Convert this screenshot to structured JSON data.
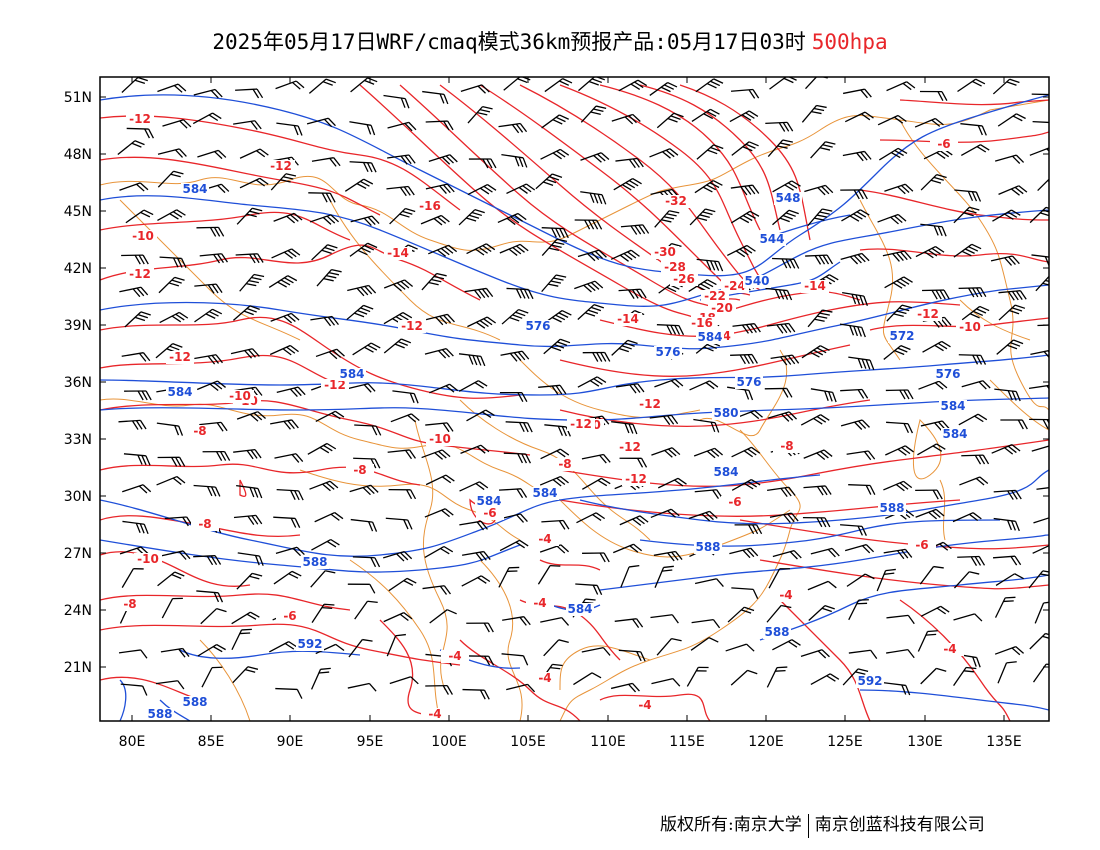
{
  "title": {
    "main": "2025年05月17日WRF/cmaq模式36km预报产品:05月17日03时",
    "level": "500hpa"
  },
  "colors": {
    "temperature": "#e8262a",
    "geopotential": "#1f4fd8",
    "coastline": "#e8943a",
    "wind_barb": "#000000"
  },
  "axes": {
    "lat_labels": [
      "51N",
      "48N",
      "45N",
      "42N",
      "39N",
      "36N",
      "33N",
      "30N",
      "27N",
      "24N",
      "21N"
    ],
    "lon_labels": [
      "80E",
      "85E",
      "90E",
      "95E",
      "100E",
      "105E",
      "110E",
      "115E",
      "120E",
      "125E",
      "130E",
      "135E"
    ]
  },
  "temperature_labels": [
    "-12",
    "-12",
    "-10",
    "-12",
    "-16",
    "-14",
    "-32",
    "-30",
    "-28",
    "-26",
    "-24",
    "-22",
    "-20",
    "-18",
    "-16",
    "-14",
    "-14",
    "-12",
    "-12",
    "-10",
    "-12",
    "-12",
    "-10",
    "-8",
    "-10",
    "-12",
    "-12",
    "-12",
    "-10",
    "-8",
    "-8",
    "-6",
    "-8",
    "-10",
    "-8",
    "-6",
    "-6",
    "-6",
    "-4",
    "-4",
    "-4",
    "-4",
    "-4",
    "-4",
    "-4",
    "-4",
    "-14",
    "-12",
    "-10",
    "-6",
    "-8"
  ],
  "geopotential_labels": [
    "584",
    "584",
    "548",
    "544",
    "540",
    "576",
    "576",
    "584",
    "584",
    "572",
    "576",
    "576",
    "580",
    "584",
    "584",
    "584",
    "584",
    "584",
    "588",
    "588",
    "588",
    "584",
    "588",
    "592",
    "592",
    "588",
    "588"
  ],
  "copyright": {
    "left": "版权所有:南京大学",
    "right": "南京创蓝科技有限公司"
  }
}
